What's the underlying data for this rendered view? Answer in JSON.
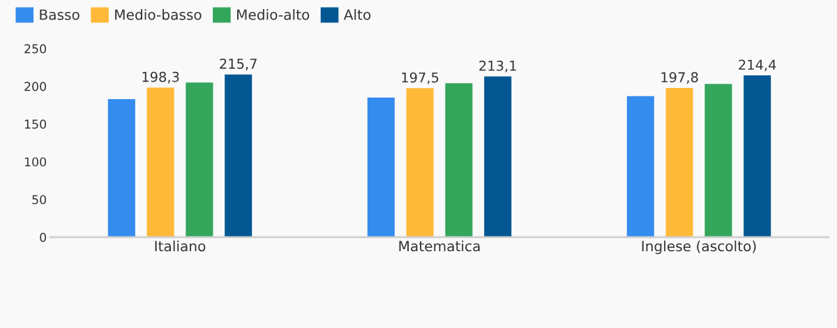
{
  "chart_data": {
    "type": "bar",
    "categories": [
      "Italiano",
      "Matematica",
      "Inglese (ascolto)"
    ],
    "series": [
      {
        "name": "Basso",
        "color": "#348cee",
        "values": [
          183,
          185,
          187
        ]
      },
      {
        "name": "Medio-basso",
        "color": "#ffb938",
        "values": [
          198.3,
          197.5,
          197.8
        ],
        "value_labels": [
          "198,3",
          "197,5",
          "197,8"
        ]
      },
      {
        "name": "Medio-alto",
        "color": "#33a65c",
        "values": [
          205,
          204,
          203
        ]
      },
      {
        "name": "Alto",
        "color": "#035893",
        "values": [
          215.7,
          213.1,
          214.4
        ],
        "value_labels": [
          "215,7",
          "213,1",
          "214,4"
        ]
      }
    ],
    "ylim": [
      0,
      250
    ],
    "yticks": [
      0,
      50,
      100,
      150,
      200,
      250
    ],
    "grid": false,
    "legend": "top left"
  }
}
